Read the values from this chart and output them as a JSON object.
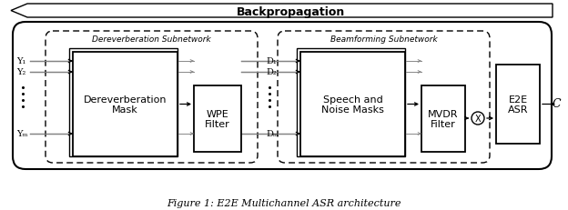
{
  "fig_width": 6.24,
  "fig_height": 2.32,
  "dpi": 100,
  "bg_color": "#ffffff",
  "caption": "Figure 1: E2E Multichannel ASR architecture",
  "backprop_text": "Backpropagation",
  "derev_subnet_text": "Dereverberation Subnetwork",
  "beam_subnet_text": "Beamforming Subnetwork",
  "derev_mask_text": "Dereverberation\nMask",
  "wpe_text": "WPE\nFilter",
  "speech_noise_text": "Speech and\nNoise Masks",
  "mvdr_text": "MVDR\nFilter",
  "e2e_text": "E2E\nASR",
  "output_text": "C",
  "Y1": "Y₁",
  "Y2": "Y₂",
  "YM": "Yₘ",
  "D1": "D₁",
  "D2": "D₂",
  "DM": "Dₘ",
  "x_mark": "X"
}
